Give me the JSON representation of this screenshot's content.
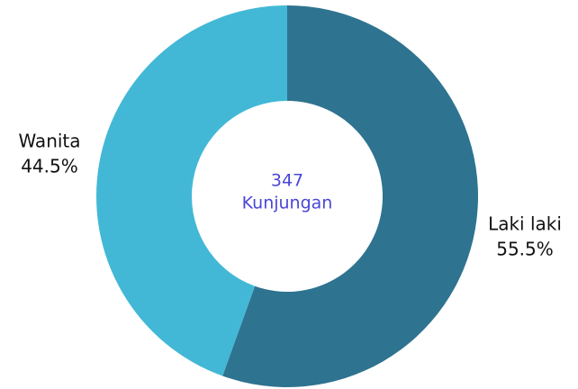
{
  "chart_data": {
    "type": "donut",
    "categories": [
      "Laki laki",
      "Wanita"
    ],
    "values": [
      55.5,
      44.5
    ],
    "value_labels": [
      "55.5%",
      "44.5%"
    ],
    "colors": [
      "#2e7390",
      "#42b8d6"
    ],
    "center_value": 347,
    "center_label": "Kunjungan"
  }
}
